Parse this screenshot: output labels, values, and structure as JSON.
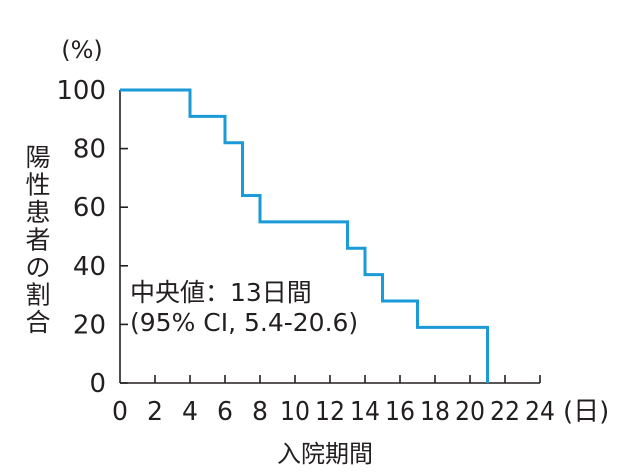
{
  "chart_data": {
    "type": "line",
    "style": "step",
    "ylabel": "陽性患者の割合",
    "yunit": "(%)",
    "xlabel": "入院期間",
    "xunit": "(日)",
    "xlim": [
      0,
      24
    ],
    "ylim": [
      0,
      100
    ],
    "xticks": [
      0,
      2,
      4,
      6,
      8,
      10,
      12,
      14,
      16,
      18,
      20,
      22,
      24
    ],
    "yticks": [
      0,
      20,
      40,
      60,
      80,
      100
    ],
    "grid": false,
    "line_color": "#1a9ad6",
    "series": [
      {
        "x": [
          0,
          4,
          6,
          7,
          8,
          13,
          14,
          15,
          17,
          21
        ],
        "y": [
          100,
          91,
          82,
          64,
          55,
          46,
          37,
          28,
          19,
          0
        ]
      }
    ],
    "annotation": {
      "line1": "中央値：13日間",
      "line2": "(95% CI, 5.4-20.6)"
    }
  }
}
